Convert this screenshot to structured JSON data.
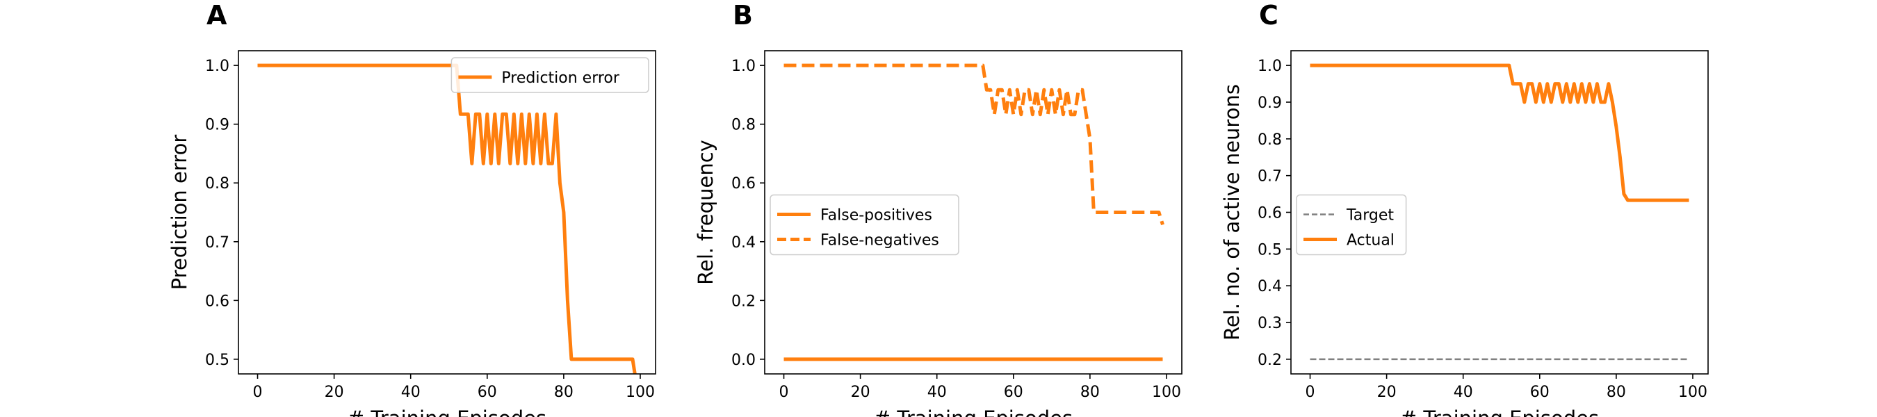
{
  "colors": {
    "orange": "#ff7f0e",
    "gray": "#808080",
    "frame": "#000000",
    "legend_border": "#cccccc"
  },
  "chart_data": [
    {
      "type": "line",
      "panel_label": "A",
      "xlabel": "# Training Episodes",
      "ylabel": "Prediction error",
      "xlim": [
        -5,
        104
      ],
      "ylim": [
        0.475,
        1.025
      ],
      "xticks": [
        0,
        20,
        40,
        60,
        80,
        100
      ],
      "yticks": [
        0.5,
        0.6,
        0.7,
        0.8,
        0.9,
        1.0
      ],
      "ytick_labels": [
        "0.5",
        "0.6",
        "0.7",
        "0.8",
        "0.9",
        "1.0"
      ],
      "legend": {
        "placement": "top-right"
      },
      "series": [
        {
          "name": "Prediction error",
          "style": "solid",
          "color": "#ff7f0e",
          "x": [
            0,
            52,
            53,
            55,
            56,
            57,
            58,
            59,
            60,
            61,
            62,
            63,
            64,
            65,
            66,
            67,
            68,
            69,
            70,
            71,
            72,
            73,
            74,
            75,
            76,
            77,
            78,
            79,
            80,
            81,
            82,
            83,
            84,
            98,
            99
          ],
          "y": [
            1.0,
            1.0,
            0.917,
            0.917,
            0.833,
            0.917,
            0.917,
            0.833,
            0.917,
            0.833,
            0.917,
            0.833,
            0.917,
            0.917,
            0.833,
            0.917,
            0.833,
            0.917,
            0.833,
            0.917,
            0.833,
            0.917,
            0.833,
            0.917,
            0.833,
            0.833,
            0.917,
            0.8,
            0.75,
            0.6,
            0.5,
            0.5,
            0.5,
            0.5,
            0.458
          ]
        }
      ]
    },
    {
      "type": "line",
      "panel_label": "B",
      "xlabel": "# Training Episodes",
      "ylabel": "Rel. frequency",
      "xlim": [
        -5,
        104
      ],
      "ylim": [
        -0.05,
        1.05
      ],
      "xticks": [
        0,
        20,
        40,
        60,
        80,
        100
      ],
      "yticks": [
        0.0,
        0.2,
        0.4,
        0.6,
        0.8,
        1.0
      ],
      "ytick_labels": [
        "0.0",
        "0.2",
        "0.4",
        "0.6",
        "0.8",
        "1.0"
      ],
      "legend": {
        "placement": "center-left"
      },
      "series": [
        {
          "name": "False-positives",
          "style": "solid",
          "color": "#ff7f0e",
          "x": [
            0,
            99
          ],
          "y": [
            0.0,
            0.0
          ]
        },
        {
          "name": "False-negatives",
          "style": "dashed",
          "color": "#ff7f0e",
          "x": [
            0,
            52,
            53,
            54,
            55,
            56,
            57,
            58,
            59,
            60,
            61,
            62,
            63,
            64,
            65,
            66,
            67,
            68,
            69,
            70,
            71,
            72,
            73,
            74,
            75,
            76,
            77,
            78,
            79,
            80,
            81,
            82,
            83,
            84,
            98,
            99
          ],
          "y": [
            1.0,
            1.0,
            0.917,
            0.917,
            0.833,
            0.917,
            0.917,
            0.833,
            0.917,
            0.833,
            0.917,
            0.833,
            0.917,
            0.917,
            0.833,
            0.917,
            0.833,
            0.917,
            0.833,
            0.917,
            0.833,
            0.917,
            0.833,
            0.917,
            0.833,
            0.833,
            0.917,
            0.917,
            0.833,
            0.75,
            0.5,
            0.5,
            0.5,
            0.5,
            0.5,
            0.458
          ]
        }
      ]
    },
    {
      "type": "line",
      "panel_label": "C",
      "xlabel": "# Training Episodes",
      "ylabel": "Rel. no. of active neurons",
      "xlim": [
        -5,
        104
      ],
      "ylim": [
        0.16,
        1.04
      ],
      "xticks": [
        0,
        20,
        40,
        60,
        80,
        100
      ],
      "yticks": [
        0.2,
        0.3,
        0.4,
        0.5,
        0.6,
        0.7,
        0.8,
        0.9,
        1.0
      ],
      "ytick_labels": [
        "0.2",
        "0.3",
        "0.4",
        "0.5",
        "0.6",
        "0.7",
        "0.8",
        "0.9",
        "1.0"
      ],
      "legend": {
        "placement": "center-left"
      },
      "series": [
        {
          "name": "Target",
          "style": "dashed-thin",
          "color": "#808080",
          "x": [
            0,
            99
          ],
          "y": [
            0.2,
            0.2
          ]
        },
        {
          "name": "Actual",
          "style": "solid",
          "color": "#ff7f0e",
          "x": [
            0,
            52,
            53,
            55,
            56,
            57,
            58,
            59,
            60,
            61,
            62,
            63,
            64,
            65,
            66,
            67,
            68,
            69,
            70,
            71,
            72,
            73,
            74,
            75,
            76,
            77,
            78,
            79,
            80,
            81,
            82,
            83,
            84,
            98,
            99
          ],
          "y": [
            1.0,
            1.0,
            0.95,
            0.95,
            0.9,
            0.95,
            0.95,
            0.9,
            0.95,
            0.9,
            0.95,
            0.9,
            0.95,
            0.95,
            0.9,
            0.95,
            0.9,
            0.95,
            0.9,
            0.95,
            0.9,
            0.95,
            0.9,
            0.95,
            0.9,
            0.9,
            0.95,
            0.9,
            0.833,
            0.75,
            0.65,
            0.633,
            0.633,
            0.633,
            0.633
          ]
        }
      ]
    }
  ]
}
